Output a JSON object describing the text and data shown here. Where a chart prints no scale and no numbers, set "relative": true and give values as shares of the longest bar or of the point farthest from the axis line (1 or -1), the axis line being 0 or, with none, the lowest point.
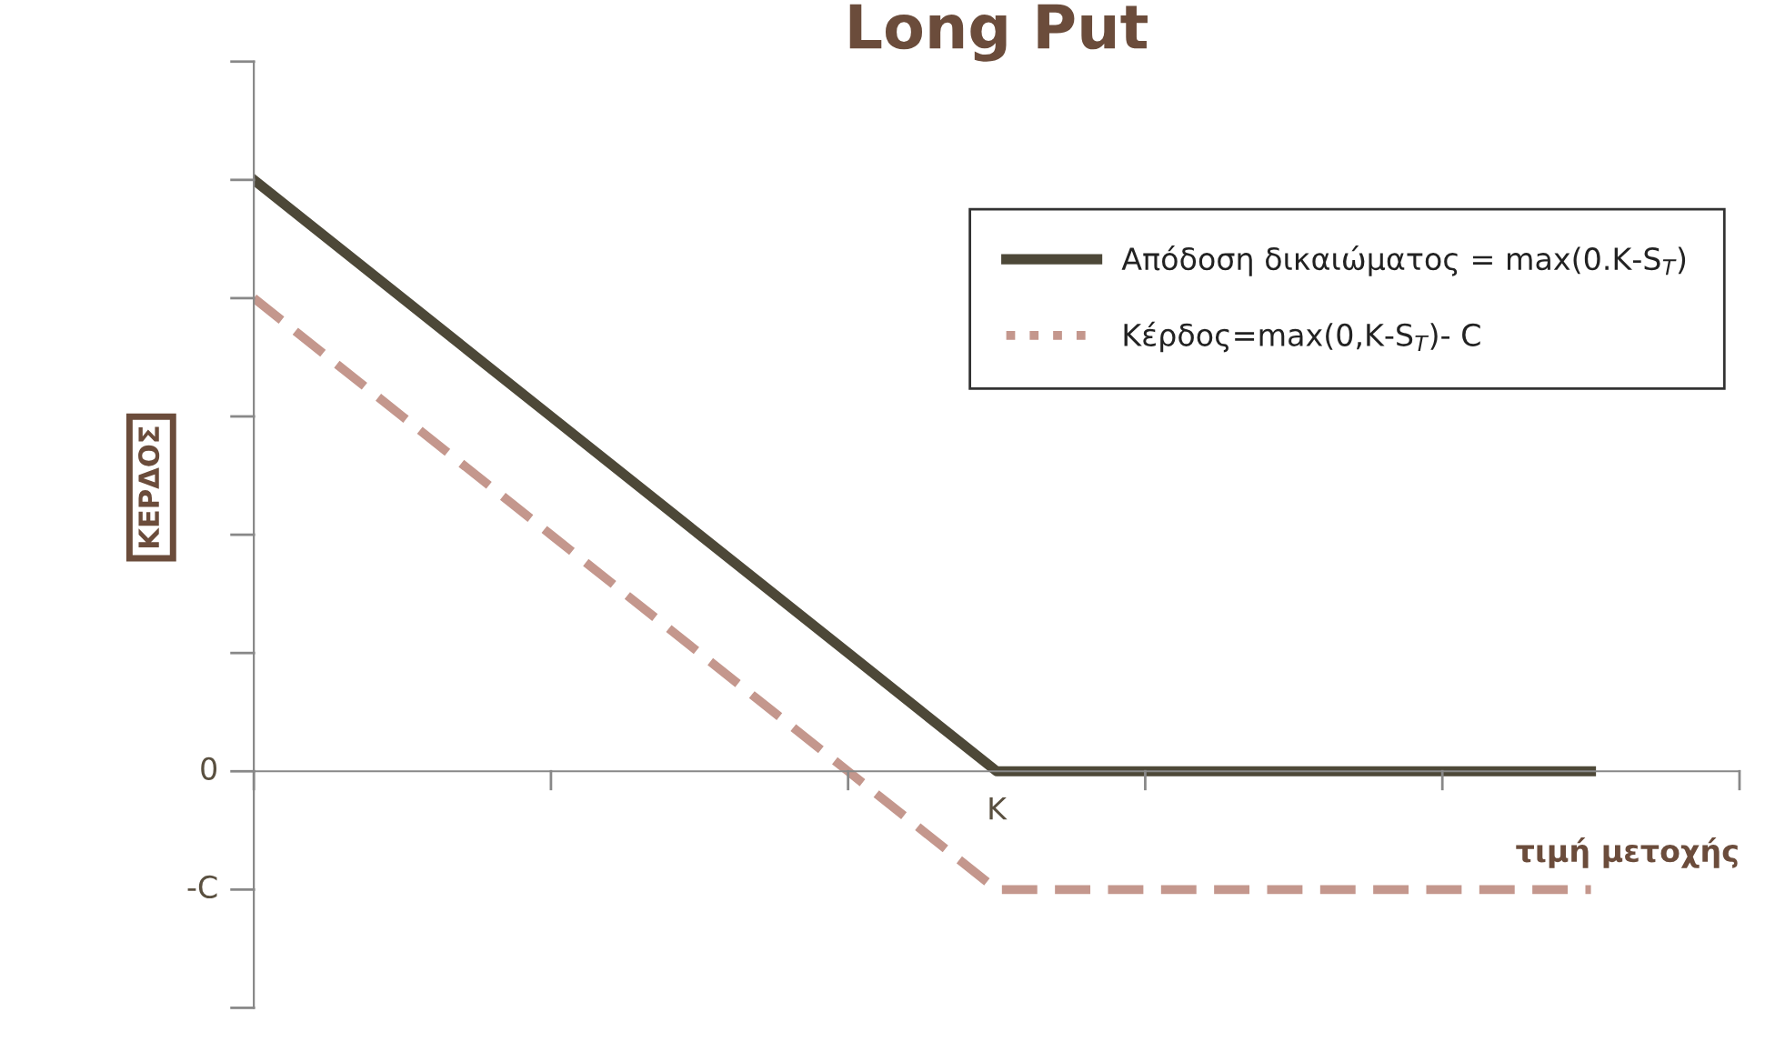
{
  "chart_data": {
    "type": "line",
    "title": "Long Put",
    "xlabel": "τιμή μετοχής",
    "ylabel": "ΚΕΡΔΟΣ",
    "relative": true,
    "categories": [
      null,
      null,
      null,
      null,
      null,
      null,
      null,
      null,
      null,
      null
    ],
    "series": [
      {
        "name": "Απόδοση δικαιώματος = max(0.K-S$_{T}$)",
        "color": "#4d4838",
        "values": [
          1,
          0.8,
          0.6,
          0.4,
          0.2,
          0,
          0,
          0,
          0,
          0
        ],
        "line_style": "solid"
      },
      {
        "name": "Κέρδος=max(0,K-S$_{T}$)- C",
        "color": "#c4978d",
        "values": [
          0.8,
          0.6,
          0.4,
          0.2,
          0,
          -0.2,
          -0.2,
          -0.2,
          -0.2,
          -0.2
        ],
        "line_style": "dashed"
      }
    ],
    "annotations": [
      "0",
      "-C",
      "K"
    ],
    "legend": "top right",
    "marker": "none"
  }
}
